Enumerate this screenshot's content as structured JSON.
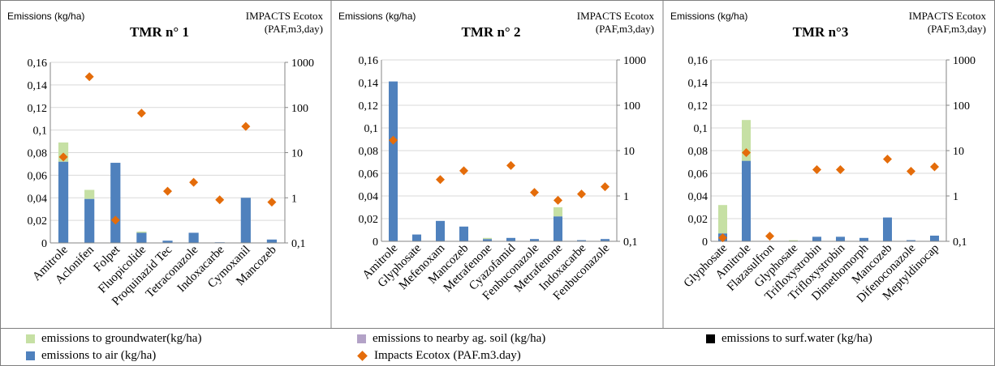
{
  "legend": {
    "groundwater": {
      "label": "emissions to groundwater(kg/ha)",
      "color": "#c6e0a4"
    },
    "soil": {
      "label": "emissions to nearby ag. soil (kg/ha)",
      "color": "#b3a2c7"
    },
    "surfwater": {
      "label": "emissions to surf.water (kg/ha)",
      "color": "#000000"
    },
    "air": {
      "label": "emissions to air (kg/ha)",
      "color": "#4f81bd"
    },
    "impacts": {
      "label": "Impacts Ecotox (PAF.m3.day)",
      "color": "#e46c0a"
    }
  },
  "chart_data": [
    {
      "type": "bar",
      "title": "TMR n° 1",
      "ylabel": "Emissions (kg/ha)",
      "y2label": "IMPACTS Ecotox (PAF,m3,day)",
      "ylim": [
        0,
        0.16
      ],
      "y2lim": [
        0.1,
        1000
      ],
      "y2scale": "log",
      "yticks": [
        "0",
        "0,02",
        "0,04",
        "0,06",
        "0,08",
        "0,1",
        "0,12",
        "0,14",
        "0,16"
      ],
      "y2ticks": [
        "0,1",
        "1",
        "10",
        "100",
        "1000"
      ],
      "categories": [
        "Amitrole",
        "Aclonifen",
        "Folpet",
        "Fluopicolide",
        "Proquinazid Tec",
        "Tetraconazole",
        "Indoxacarbe",
        "Cymoxanil",
        "Mancozeb"
      ],
      "series": [
        {
          "key": "air",
          "type": "stacked-bar",
          "values": [
            0.072,
            0.039,
            0.071,
            0.009,
            0.002,
            0.009,
            0.0003,
            0.04,
            0.003
          ]
        },
        {
          "key": "groundwater",
          "type": "stacked-bar",
          "values": [
            0.017,
            0.008,
            0.0,
            0.001,
            0.0,
            0.0,
            0.0,
            0.0,
            0.0
          ]
        },
        {
          "key": "impacts",
          "type": "scatter",
          "axis": "secondary",
          "values": [
            8,
            480,
            0.32,
            75,
            1.4,
            2.2,
            0.9,
            38,
            0.8
          ]
        }
      ]
    },
    {
      "type": "bar",
      "title": "TMR n° 2",
      "ylabel": "Emissions (kg/ha)",
      "y2label": "IMPACTS Ecotox (PAF,m3,day)",
      "ylim": [
        0,
        0.16
      ],
      "y2lim": [
        0.1,
        1000
      ],
      "y2scale": "log",
      "yticks": [
        "0",
        "0,02",
        "0,04",
        "0,06",
        "0,08",
        "0,1",
        "0,12",
        "0,14",
        "0,16"
      ],
      "y2ticks": [
        "0,1",
        "1",
        "10",
        "100",
        "1000"
      ],
      "categories": [
        "Amitrole",
        "Glyphosate",
        "Mefenoxam",
        "Mancozeb",
        "Metrafenone",
        "Cyazofamid",
        "Fenbuconazole",
        "Metrafenone",
        "Indoxacarbe",
        "Fenbuconazole"
      ],
      "series": [
        {
          "key": "air",
          "type": "stacked-bar",
          "values": [
            0.141,
            0.006,
            0.018,
            0.013,
            0.002,
            0.003,
            0.002,
            0.022,
            0.001,
            0.002
          ]
        },
        {
          "key": "groundwater",
          "type": "stacked-bar",
          "values": [
            0.0,
            0.0,
            0.0,
            0.0,
            0.001,
            0.0,
            0.0,
            0.008,
            0.0,
            0.0
          ]
        },
        {
          "key": "impacts",
          "type": "scatter",
          "axis": "secondary",
          "values": [
            17,
            null,
            2.3,
            3.6,
            null,
            4.7,
            1.2,
            0.8,
            1.1,
            1.6
          ]
        }
      ]
    },
    {
      "type": "bar",
      "title": "TMR n°3",
      "ylabel": "Emissions (kg/ha)",
      "y2label": "IMPACTS Ecotox (PAF,m3,day)",
      "ylim": [
        0,
        0.16
      ],
      "y2lim": [
        0.1,
        1000
      ],
      "y2scale": "log",
      "yticks": [
        "0",
        "0,02",
        "0,04",
        "0,06",
        "0,08",
        "0,1",
        "0,12",
        "0,14",
        "0,16"
      ],
      "y2ticks": [
        "0,1",
        "1",
        "10",
        "100",
        "1000"
      ],
      "categories": [
        "Glyphosate",
        "Amitrole",
        "Flazasulfron",
        "Glyphosate",
        "Trifloxystrobin",
        "Trifloxystrobin",
        "Dimethomorph",
        "Mancozeb",
        "Difenoconazole",
        "Meptyldinocap"
      ],
      "series": [
        {
          "key": "air",
          "type": "stacked-bar",
          "values": [
            0.007,
            0.071,
            0.0,
            0.0,
            0.004,
            0.004,
            0.003,
            0.021,
            0.001,
            0.005
          ]
        },
        {
          "key": "groundwater",
          "type": "stacked-bar",
          "values": [
            0.025,
            0.036,
            0.0,
            0.001,
            0.0,
            0.0,
            0.0,
            0.0,
            0.0,
            0.0
          ]
        },
        {
          "key": "impacts",
          "type": "scatter",
          "axis": "secondary",
          "values": [
            0.12,
            9,
            0.13,
            null,
            3.8,
            3.8,
            null,
            6.5,
            3.5,
            4.4
          ]
        }
      ]
    }
  ]
}
